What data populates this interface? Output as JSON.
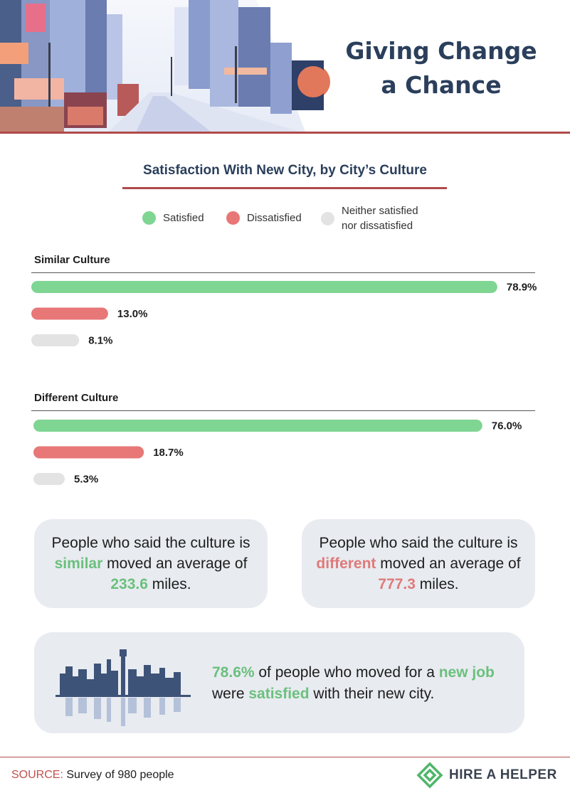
{
  "header": {
    "title_line1": "Giving Change",
    "title_line2": "a Chance"
  },
  "chart_data": {
    "type": "bar",
    "orientation": "horizontal",
    "title": "Satisfaction With New City, by City’s Culture",
    "legend": [
      {
        "name": "Satisfied",
        "color": "#7fd592"
      },
      {
        "name": "Dissatisfied",
        "color": "#e87777"
      },
      {
        "name_line1": "Neither satisfied",
        "name_line2": "nor dissatisfied",
        "color": "#e3e3e3"
      }
    ],
    "groups": [
      {
        "name": "Similar Culture",
        "values": [
          78.9,
          13.0,
          8.1
        ],
        "labels": [
          "78.9%",
          "13.0%",
          "8.1%"
        ]
      },
      {
        "name": "Different Culture",
        "values": [
          76.0,
          18.7,
          5.3
        ],
        "labels": [
          "76.0%",
          "18.7%",
          "5.3%"
        ]
      }
    ],
    "categories": [
      "Satisfied",
      "Dissatisfied",
      "Neither satisfied nor dissatisfied"
    ],
    "unit": "%"
  },
  "cards": {
    "similar": {
      "text_before": "People who said the culture is ",
      "highlight": "similar",
      "text_middle": " moved an average of ",
      "value": "233.6",
      "text_after": " miles."
    },
    "different": {
      "text_before": "People who said the culture is ",
      "highlight": "different",
      "text_middle": " moved an average of ",
      "value": "777.3",
      "text_after": " miles."
    },
    "job": {
      "value": "78.6%",
      "text_1": " of people who moved for a ",
      "highlight_1": "new job",
      "text_2": "were ",
      "highlight_2": "satisfied",
      "text_3": " with their new city."
    }
  },
  "footer": {
    "source_label": "SOURCE:",
    "source_text": " Survey of 980 people",
    "brand": "HIRE A HELPER"
  }
}
